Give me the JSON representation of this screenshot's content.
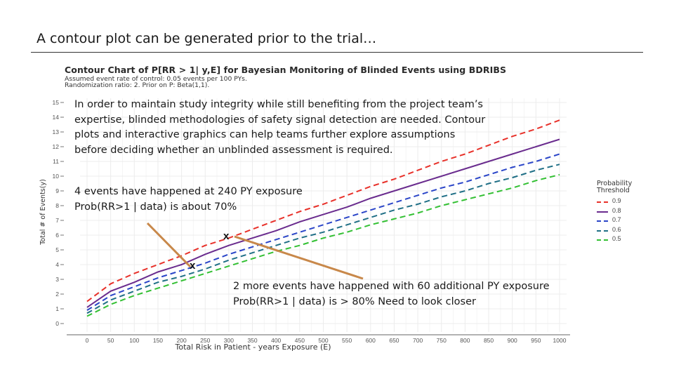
{
  "slide": {
    "title": "A contour plot can be generated prior to the trial…"
  },
  "chart_header": {
    "title": "Contour Chart of P[RR > 1| y,E] for Bayesian Monitoring of Blinded Events using BDRIBS",
    "subtitle_1": "Assumed event rate of control: 0.05 events per 100 PYs.",
    "subtitle_2": "Randomization ratio: 2. Prior on P: Beta(1,1)."
  },
  "notes": {
    "intro_1": "In order to maintain study integrity while still benefiting from the project team’s",
    "intro_2": "expertise, blinded methodologies of safety signal detection are needed. Contour",
    "intro_3": "plots and interactive graphics can help teams further explore assumptions",
    "intro_4": "before deciding whether an unblinded assessment is required.",
    "point1_1": "4 events have happened at 240 PY exposure",
    "point1_2": "Prob(RR>1 | data) is about 70%",
    "point2_1": "2 more events have happened with 60 additional PY exposure",
    "point2_2": "Prob(RR>1 | data) is > 80%  Need to look closer",
    "x_mark_1": "x",
    "x_mark_2": "x"
  },
  "legend": {
    "title_1": "Probability",
    "title_2": "Threshold"
  },
  "colors": {
    "t09": "#e8312a",
    "t08": "#6a2c8e",
    "t07": "#2a45c8",
    "t06": "#1f6f86",
    "t05": "#33c033",
    "arrow": "#c8884a"
  },
  "chart_data": {
    "type": "line",
    "xlabel": "Total Risk in Patient - years Exposure (E)",
    "ylabel": "Total # of Events(y)",
    "xlim": [
      0,
      1000
    ],
    "ylim": [
      0,
      15
    ],
    "x_ticks": [
      "0",
      "50",
      "100",
      "150",
      "200",
      "250",
      "300",
      "350",
      "400",
      "450",
      "500",
      "550",
      "600",
      "650",
      "700",
      "750",
      "800",
      "850",
      "900",
      "950",
      "1000"
    ],
    "y_ticks": [
      "0",
      "1",
      "2",
      "3",
      "4",
      "5",
      "6",
      "7",
      "8",
      "9",
      "10",
      "11",
      "12",
      "13",
      "14",
      "15"
    ],
    "grid": true,
    "legend_position": "right",
    "x": [
      0,
      50,
      100,
      150,
      200,
      250,
      300,
      350,
      400,
      450,
      500,
      550,
      600,
      650,
      700,
      750,
      800,
      850,
      900,
      950,
      1000
    ],
    "series": [
      {
        "name": "0.9",
        "style": "dashed",
        "color_key": "t09",
        "values": [
          1.5,
          2.7,
          3.4,
          4.0,
          4.6,
          5.3,
          5.8,
          6.4,
          7.0,
          7.6,
          8.1,
          8.7,
          9.3,
          9.8,
          10.4,
          11.0,
          11.5,
          12.1,
          12.7,
          13.2,
          13.8
        ]
      },
      {
        "name": "0.8",
        "style": "solid",
        "color_key": "t08",
        "values": [
          1.1,
          2.2,
          2.8,
          3.5,
          4.0,
          4.7,
          5.3,
          5.8,
          6.3,
          6.9,
          7.4,
          7.9,
          8.5,
          9.0,
          9.5,
          10.0,
          10.5,
          11.0,
          11.5,
          12.0,
          12.5
        ]
      },
      {
        "name": "0.7",
        "style": "dashed",
        "color_key": "t07",
        "values": [
          0.9,
          1.9,
          2.5,
          3.1,
          3.6,
          4.1,
          4.7,
          5.2,
          5.7,
          6.2,
          6.7,
          7.2,
          7.7,
          8.2,
          8.7,
          9.2,
          9.6,
          10.1,
          10.6,
          11.0,
          11.5
        ]
      },
      {
        "name": "0.6",
        "style": "dashed",
        "color_key": "t06",
        "values": [
          0.7,
          1.6,
          2.2,
          2.8,
          3.2,
          3.7,
          4.3,
          4.8,
          5.3,
          5.8,
          6.2,
          6.7,
          7.2,
          7.7,
          8.1,
          8.6,
          9.0,
          9.5,
          9.9,
          10.4,
          10.8
        ]
      },
      {
        "name": "0.5",
        "style": "dashed",
        "color_key": "t05",
        "values": [
          0.5,
          1.3,
          1.9,
          2.4,
          2.9,
          3.4,
          3.9,
          4.4,
          4.9,
          5.3,
          5.8,
          6.2,
          6.7,
          7.1,
          7.5,
          8.0,
          8.4,
          8.8,
          9.2,
          9.7,
          10.1
        ]
      }
    ]
  }
}
